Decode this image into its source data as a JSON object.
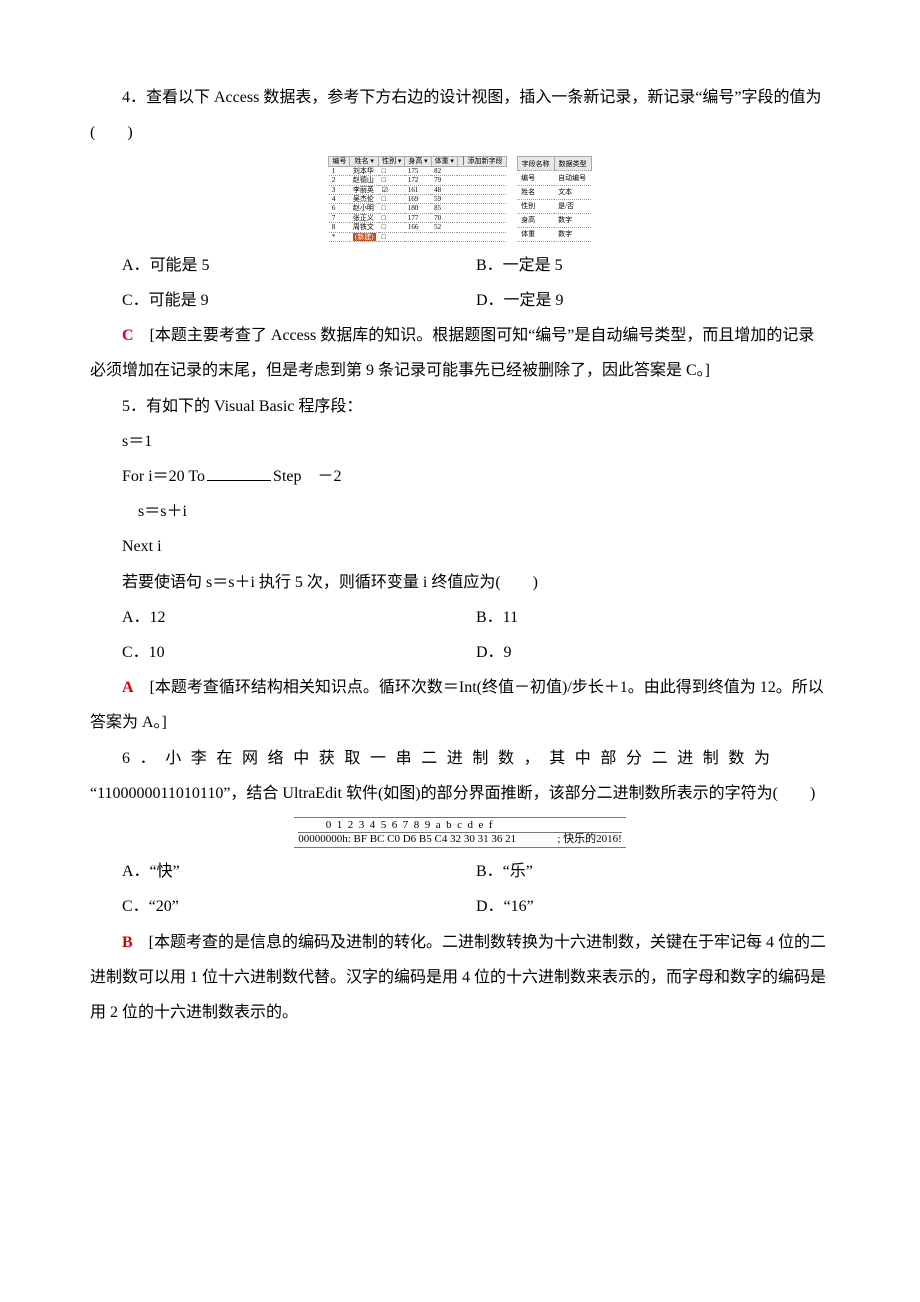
{
  "q4": {
    "stem": "4．查看以下 Access 数据表，参考下方右边的设计视图，插入一条新记录，新记录“编号”字段的值为(　　)",
    "table": {
      "headers": [
        "编号",
        "姓名",
        "性别",
        "身高",
        "体重",
        "│ 添加新字段"
      ],
      "rows": [
        [
          "1",
          "刘本华",
          "□",
          "175",
          "82",
          ""
        ],
        [
          "2",
          "赵德山",
          "□",
          "172",
          "79",
          ""
        ],
        [
          "3",
          "李丽英",
          "☑",
          "161",
          "48",
          ""
        ],
        [
          "4",
          "吴杰伦",
          "□",
          "169",
          "59",
          ""
        ],
        [
          "6",
          "赵小明",
          "□",
          "180",
          "85",
          ""
        ],
        [
          "7",
          "张正义",
          "□",
          "177",
          "70",
          ""
        ],
        [
          "8",
          "周铁文",
          "□",
          "166",
          "52",
          ""
        ]
      ],
      "newrow": "(新建)",
      "side_headers": [
        "字段名称",
        "数据类型"
      ],
      "side_rows": [
        [
          "编号",
          "自动编号"
        ],
        [
          "姓名",
          "文本"
        ],
        [
          "性别",
          "是/否"
        ],
        [
          "身高",
          "数字"
        ],
        [
          "体重",
          "数字"
        ]
      ]
    },
    "optA": "A．可能是 5",
    "optB": "B．一定是 5",
    "optC": "C．可能是 9",
    "optD": "D．一定是 9",
    "ans_letter": "C",
    "ans_text": "　[本题主要考查了 Access 数据库的知识。根据题图可知“编号”是自动编号类型，而且增加的记录必须增加在记录的末尾，但是考虑到第 9 条记录可能事先已经被删除了，因此答案是 C。]"
  },
  "q5": {
    "stem": "5．有如下的 Visual Basic 程序段：",
    "c1": "s＝1",
    "c2a": "For i＝20 To",
    "c2b": "Step　－2",
    "c3": "s＝s＋i",
    "c4": "Next i",
    "ask": "若要使语句 s＝s＋i 执行 5 次，则循环变量 i 终值应为(　　)",
    "optA": "A．12",
    "optB": "B．11",
    "optC": "C．10",
    "optD": "D．9",
    "ans_letter": "A",
    "ans_text": "　[本题考查循环结构相关知识点。循环次数＝Int(终值－初值)/步长＋1。由此得到终值为 12。所以答案为 A。]"
  },
  "q6": {
    "stem_a": "6．小李在网络中获取一串二进制数，其中部分二进制数为",
    "stem_b": "“1100000011010110”，结合 UltraEdit 软件(如图)的部分界面推断，该部分二进制数所表示的字符为(　　)",
    "hex_header": "          0  1  2  3  4  5  6  7  8  9  a  b  c  d  e  f",
    "hex_line": "00000000h: BF BC C0 D6 B5 C4 32 30 31 36 21               ; 快乐的2016!",
    "optA": "A．“快”",
    "optB": "B．“乐”",
    "optC": "C．“20”",
    "optD": "D．“16”",
    "ans_letter": "B",
    "ans_text": "　[本题考查的是信息的编码及进制的转化。二进制数转换为十六进制数，关键在于牢记每 4 位的二进制数可以用 1 位十六进制数代替。汉字的编码是用 4 位的十六进制数来表示的，而字母和数字的编码是用 2 位的十六进制数表示的。"
  }
}
